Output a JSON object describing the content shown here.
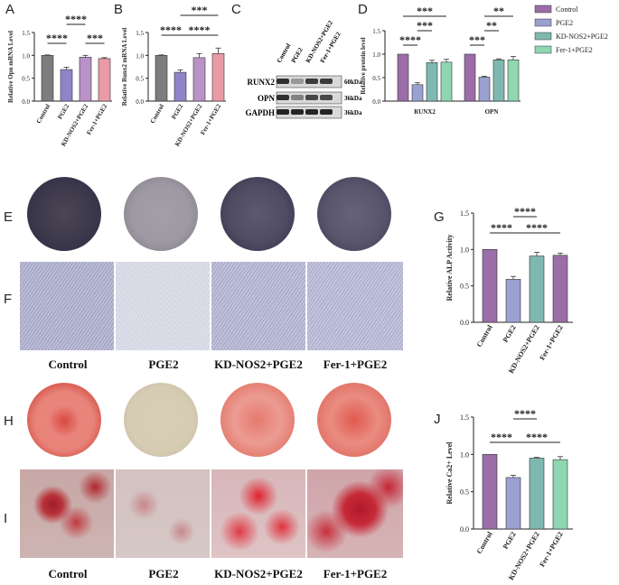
{
  "panels": {
    "A": "A",
    "B": "B",
    "C": "C",
    "D": "D",
    "E": "E",
    "F": "F",
    "G": "G",
    "H": "H",
    "I": "I",
    "J": "J"
  },
  "groups": [
    "Control",
    "PGE2",
    "KD-NOS2+PGE2",
    "Fer-1+PGE2"
  ],
  "colors": {
    "control": "#7d7d7d",
    "pge2": "#8e84c8",
    "kd": "#b993c8",
    "fer": "#ea9aa6",
    "purple": "#9b6ea8",
    "lav": "#9aa0d0",
    "teal": "#7fb8b0",
    "green": "#8fd6b3"
  },
  "blot": {
    "lanes": [
      "Control",
      "PGE2",
      "KD-NOS2+PGE2",
      "Fer-1+PGE2"
    ],
    "rows": [
      {
        "name": "RUNX2",
        "mw": "60kDa"
      },
      {
        "name": "OPN",
        "mw": "36kDa"
      },
      {
        "name": "GAPDH",
        "mw": "36kDa"
      }
    ]
  },
  "chart_data": [
    {
      "panel": "A",
      "type": "bar",
      "categories": [
        "Control",
        "PGE2",
        "KD-NOS2+PGE2",
        "Fer-1+PGE2"
      ],
      "values": [
        1.0,
        0.69,
        0.96,
        0.93
      ],
      "errors": [
        0.01,
        0.05,
        0.04,
        0.02
      ],
      "ylabel": "Relative Opn mRNA Level",
      "ylim": [
        0,
        1.5
      ],
      "yticks": [
        "0.0",
        "0.5",
        "1.0",
        "1.5"
      ],
      "significance": [
        "****",
        "****",
        "***"
      ]
    },
    {
      "panel": "B",
      "type": "bar",
      "categories": [
        "Control",
        "PGE2",
        "KD-NOS2+PGE2",
        "Fer-1+PGE2"
      ],
      "values": [
        1.0,
        0.63,
        0.95,
        1.04
      ],
      "errors": [
        0.01,
        0.05,
        0.09,
        0.12
      ],
      "ylabel": "Relative Runx2 mRNA Level",
      "ylim": [
        0,
        1.5
      ],
      "yticks": [
        "0.0",
        "0.5",
        "1.0",
        "1.5"
      ],
      "significance": [
        "***",
        "****",
        "****"
      ]
    },
    {
      "panel": "D",
      "type": "bar",
      "categories": [
        "RUNX2",
        "OPN"
      ],
      "series": [
        {
          "name": "Control",
          "values": [
            1.0,
            1.0
          ],
          "errors": [
            0.0,
            0.0
          ]
        },
        {
          "name": "PGE2",
          "values": [
            0.35,
            0.51
          ],
          "errors": [
            0.04,
            0.02
          ]
        },
        {
          "name": "KD-NOS2+PGE2",
          "values": [
            0.82,
            0.88
          ],
          "errors": [
            0.05,
            0.02
          ]
        },
        {
          "name": "Fer-1+PGE2",
          "values": [
            0.83,
            0.88
          ],
          "errors": [
            0.06,
            0.07
          ]
        }
      ],
      "ylabel": "Relative protein level",
      "ylim": [
        0,
        1.5
      ],
      "yticks": [
        "0.0",
        "0.5",
        "1.0",
        "1.5"
      ],
      "legend": "top-right",
      "significance": [
        "***",
        "***",
        "****",
        "**",
        "**",
        "***"
      ]
    },
    {
      "panel": "G",
      "type": "bar",
      "categories": [
        "Control",
        "PGE2",
        "KD-NOS2+PGE2",
        "Fer-1+PGE2"
      ],
      "values": [
        1.0,
        0.59,
        0.91,
        0.92
      ],
      "errors": [
        0.0,
        0.04,
        0.05,
        0.03
      ],
      "ylabel": "Relative ALP Activity",
      "ylim": [
        0,
        1.5
      ],
      "yticks": [
        "0.0",
        "0.5",
        "1.0",
        "1.5"
      ],
      "significance": [
        "****",
        "****",
        "****"
      ]
    },
    {
      "panel": "J",
      "type": "bar",
      "categories": [
        "Control",
        "PGE2",
        "KD-NOS2+PGE2",
        "Fer-1+PGE2"
      ],
      "values": [
        1.0,
        0.69,
        0.95,
        0.93
      ],
      "errors": [
        0.0,
        0.03,
        0.01,
        0.04
      ],
      "ylabel": "Relative Ca2+ Level",
      "ylim": [
        0,
        1.5
      ],
      "yticks": [
        "0.0",
        "0.5",
        "1.0",
        "1.5"
      ],
      "significance": [
        "****",
        "****",
        "****"
      ]
    }
  ]
}
